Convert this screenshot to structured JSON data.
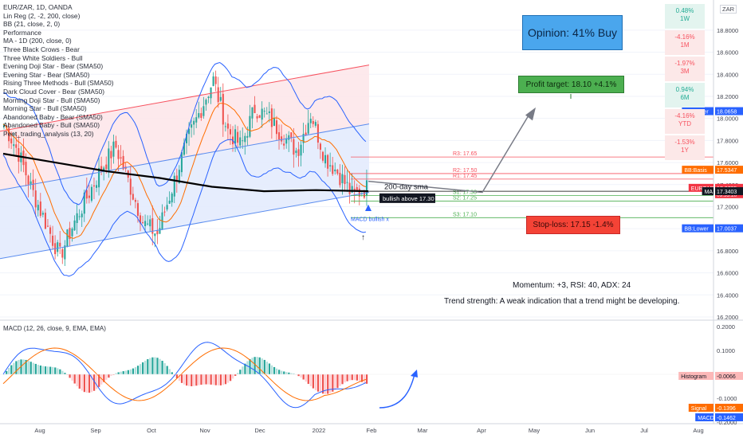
{
  "legend": [
    "EUR/ZAR, 1D, OANDA",
    "Lin Reg (2, -2, 200, close)",
    "BB (21, close, 2, 0)",
    "Performance",
    "MA - 1D (200, close, 0)",
    "Three Black Crows - Bear",
    "Three White Soldiers - Bull",
    "Evening Doji Star - Bear (SMA50)",
    "Evening Star - Bear (SMA50)",
    "Rising Three Methods - Bull (SMA50)",
    "Dark Cloud Cover - Bear (SMA50)",
    "Morning Doji Star - Bull (SMA50)",
    "Morning Star - Bull (SMA50)",
    "Abandoned Baby - Bear (SMA50)",
    "Abandoned Baby - Bull (SMA50)",
    "Peet_trading_analysis (13, 20)"
  ],
  "currency_label": "ZAR",
  "performance": [
    {
      "value": "0.48%",
      "period": "1W",
      "sign": "pos"
    },
    {
      "value": "-4.16%",
      "period": "1M",
      "sign": "neg"
    },
    {
      "value": "-1.97%",
      "period": "3M",
      "sign": "neg"
    },
    {
      "value": "0.94%",
      "period": "6M",
      "sign": "pos"
    },
    {
      "value": "-4.16%",
      "period": "YTD",
      "sign": "neg"
    },
    {
      "value": "-1.53%",
      "period": "1Y",
      "sign": "neg"
    }
  ],
  "opinion": "Opinion: 41% Buy",
  "profit_target": "Profit target: 18.10 +4.1%",
  "stop_loss": "Stop-loss: 17.15 -1.4%",
  "momentum": "Momentum: +3, RSI: 40, ADX: 24",
  "trend_strength": "Trend strength: A weak indication that a trend might be developing.",
  "annotations": {
    "ma200": "200-day sma",
    "bullish_above": "bullish above 17.30",
    "macd_bullish": "MACD bullish x",
    "arrow_up": "↑"
  },
  "price_tags": [
    {
      "label": "BB:Upper",
      "value": "18.0658",
      "color": "#2962ff"
    },
    {
      "label": "BB:Basis",
      "value": "17.5347",
      "color": "#ff6d00"
    },
    {
      "label": "EURZAR",
      "value": "17.3705",
      "sub": "09:33:20",
      "color": "#f23645"
    },
    {
      "label": "MA",
      "value": "17.3403",
      "color": "#131722"
    },
    {
      "label": "BB:Lower",
      "value": "17.0037",
      "color": "#2962ff"
    }
  ],
  "macd_tags": [
    {
      "label": "Histogram",
      "value": "-0.0066",
      "color": "#fcb8b8"
    },
    {
      "label": "Signal",
      "value": "-0.1396",
      "color": "#ff6d00"
    },
    {
      "label": "MACD",
      "value": "-0.1462",
      "color": "#2962ff"
    }
  ],
  "macd_title": "MACD (12, 26, close, 9, EMA, EMA)",
  "colors": {
    "up": "#26a69a",
    "down": "#ef5350",
    "ma": "#000000",
    "bb": "#2962ff",
    "basis": "#ff6d00"
  },
  "chart_data": {
    "type": "line",
    "title": "EUR/ZAR, 1D, OANDA",
    "symbol": "EURZAR",
    "x": [
      "Aug",
      "Sep",
      "Oct",
      "Nov",
      "Dec",
      "2022",
      "Feb",
      "Mar",
      "Apr",
      "May",
      "Jun",
      "Jul",
      "Aug"
    ],
    "ylim": [
      16.2,
      18.9
    ],
    "y_ticks": [
      16.2,
      16.4,
      16.6,
      16.8,
      17.0,
      17.2,
      17.4,
      17.6,
      17.8,
      18.0,
      18.2,
      18.4,
      18.6,
      18.8
    ],
    "y_tick_labels": [
      "16.2000",
      "16.4000",
      "16.6000",
      "16.8000",
      "17.0000",
      "17.2000",
      "17.4000",
      "17.6000",
      "17.8000",
      "18.0000",
      "18.2000",
      "18.4000",
      "18.6000",
      "18.8000"
    ],
    "levels": [
      {
        "name": "R3",
        "value": 17.65,
        "label": "R3: 17.65"
      },
      {
        "name": "R2",
        "value": 17.5,
        "label": "R2: 17.50"
      },
      {
        "name": "R1",
        "value": 17.45,
        "label": "R1: 17.45"
      },
      {
        "name": "S1",
        "value": 17.3,
        "label": "S1: 17.30"
      },
      {
        "name": "S2",
        "value": 17.25,
        "label": "S2: 17.25"
      },
      {
        "name": "S3",
        "value": 17.1,
        "label": "S3: 17.10"
      }
    ],
    "close_series": [
      {
        "x": "Jul",
        "close": 17.95
      },
      {
        "x": "Aug",
        "close": 17.7
      },
      {
        "x": "Aug",
        "close": 17.35
      },
      {
        "x": "Aug",
        "close": 17.05
      },
      {
        "x": "Sep",
        "close": 16.75
      },
      {
        "x": "Sep",
        "close": 17.05
      },
      {
        "x": "Sep",
        "close": 17.3
      },
      {
        "x": "Sep",
        "close": 17.55
      },
      {
        "x": "Oct",
        "close": 17.75
      },
      {
        "x": "Oct",
        "close": 17.4
      },
      {
        "x": "Oct",
        "close": 17.05
      },
      {
        "x": "Oct",
        "close": 16.95
      },
      {
        "x": "Nov",
        "close": 17.35
      },
      {
        "x": "Nov",
        "close": 17.75
      },
      {
        "x": "Nov",
        "close": 18.05
      },
      {
        "x": "Nov",
        "close": 18.35
      },
      {
        "x": "Dec",
        "close": 17.9
      },
      {
        "x": "Dec",
        "close": 17.75
      },
      {
        "x": "Dec",
        "close": 18.1
      },
      {
        "x": "Dec",
        "close": 18.0
      },
      {
        "x": "Dec",
        "close": 17.85
      },
      {
        "x": "2022",
        "close": 17.7
      },
      {
        "x": "2022",
        "close": 18.05
      },
      {
        "x": "2022",
        "close": 17.65
      },
      {
        "x": "2022",
        "close": 17.5
      },
      {
        "x": "2022",
        "close": 17.3
      },
      {
        "x": "Feb",
        "close": 17.37
      }
    ],
    "ma200": [
      {
        "x": "Jul",
        "y": 17.68
      },
      {
        "x": "Aug",
        "y": 17.6
      },
      {
        "x": "Sep",
        "y": 17.52
      },
      {
        "x": "Oct",
        "y": 17.46
      },
      {
        "x": "Nov",
        "y": 17.38
      },
      {
        "x": "Dec",
        "y": 17.34
      },
      {
        "x": "2022",
        "y": 17.35
      },
      {
        "x": "Feb",
        "y": 17.34
      }
    ],
    "macd": {
      "ylim": [
        -0.2,
        0.2
      ],
      "y_tick_labels": [
        "0.2000",
        "0.1000",
        "0",
        "-0.1000",
        "-0.2000"
      ],
      "histogram_last": -0.0066,
      "signal_last": -0.1396,
      "macd_last": -0.1462
    }
  }
}
